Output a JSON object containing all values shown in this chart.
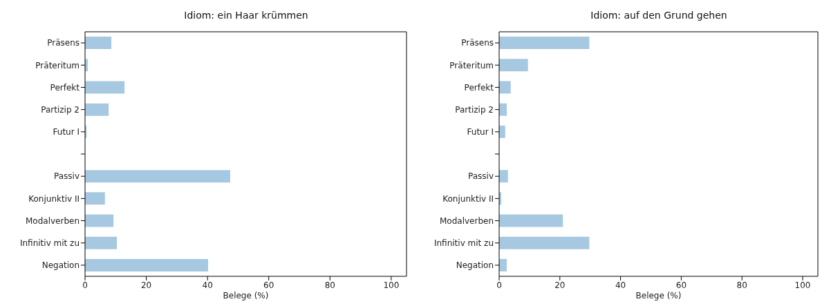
{
  "chart_data": [
    {
      "type": "bar",
      "orientation": "horizontal",
      "title": "Idiom: ein Haar krümmen",
      "xlabel": "Belege (%)",
      "categories": [
        "Präsens",
        "Präteritum",
        "Perfekt",
        "Partizip 2",
        "Futur I",
        null,
        "Passiv",
        "Konjunktiv II",
        "Modalverben",
        "Infinitiv mit zu",
        "Negation"
      ],
      "values": [
        8.6,
        0.9,
        12.9,
        7.7,
        0.5,
        null,
        47.4,
        6.5,
        9.3,
        10.4,
        40.2
      ],
      "color": "#a6c8e0",
      "xlim": [
        0,
        105
      ],
      "xticks": [
        0,
        20,
        40,
        60,
        80,
        100
      ],
      "grid": false,
      "legend": false
    },
    {
      "type": "bar",
      "orientation": "horizontal",
      "title": "Idiom: auf den Grund gehen",
      "xlabel": "Belege (%)",
      "categories": [
        "Präsens",
        "Präteritum",
        "Perfekt",
        "Partizip 2",
        "Futur I",
        null,
        "Passiv",
        "Konjunktiv II",
        "Modalverben",
        "Infinitiv mit zu",
        "Negation"
      ],
      "values": [
        29.7,
        9.5,
        3.8,
        2.5,
        2.0,
        null,
        2.9,
        0.7,
        21.0,
        29.7,
        2.5
      ],
      "color": "#a6c8e0",
      "xlim": [
        0,
        105
      ],
      "xticks": [
        0,
        20,
        40,
        60,
        80,
        100
      ],
      "grid": false,
      "legend": false
    }
  ]
}
